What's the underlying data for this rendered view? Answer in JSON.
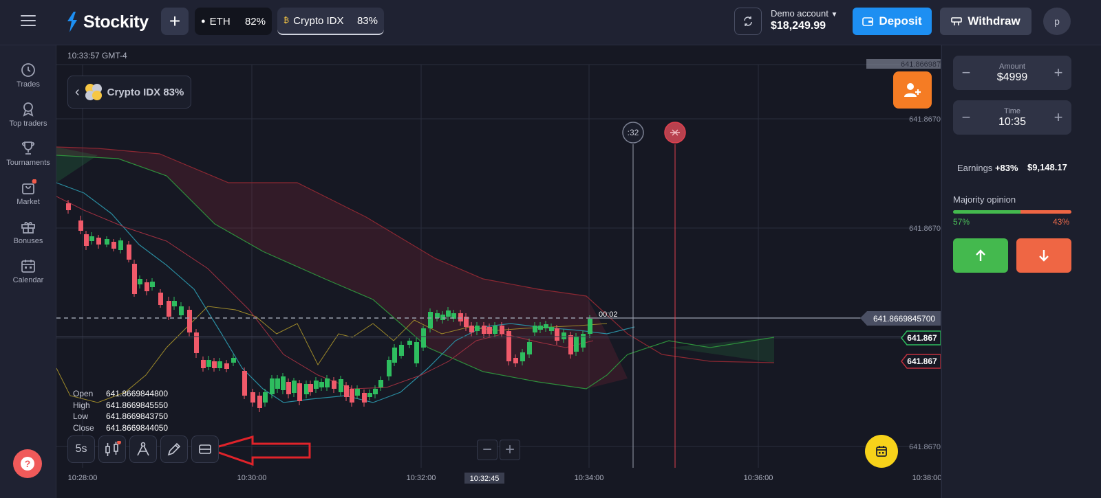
{
  "topbar": {
    "brand": "Stockity",
    "tabs": [
      {
        "name": "ETH",
        "payout": "82%"
      },
      {
        "name": "Crypto IDX",
        "payout": "83%"
      }
    ],
    "account_label": "Demo account",
    "balance": "$18,249.99",
    "deposit_label": "Deposit",
    "withdraw_label": "Withdraw",
    "avatar_initial": "p"
  },
  "sidebar": {
    "items": [
      {
        "label": "Trades",
        "icon": "clock-icon"
      },
      {
        "label": "Top traders",
        "icon": "medal-icon"
      },
      {
        "label": "Tournaments",
        "icon": "trophy-icon"
      },
      {
        "label": "Market",
        "icon": "bag-icon"
      },
      {
        "label": "Bonuses",
        "icon": "gift-icon"
      },
      {
        "label": "Calendar",
        "icon": "calendar-icon"
      }
    ]
  },
  "chart": {
    "header_time": "10:33:57 GMT-4",
    "asset_chip": "Crypto IDX 83%",
    "price_labels": [
      "641.8669873452",
      "641.8670",
      "641.8670",
      "641.8670"
    ],
    "current_price": "641.8669845700",
    "countdown": "00:02",
    "green_marker": "641.867",
    "red_marker": "641.867",
    "timer_circle": ":32",
    "time_labels": [
      "10:28:00",
      "10:30:00",
      "10:32:00",
      "10:34:00",
      "10:36:00",
      "10:38:00"
    ],
    "cursor_time": "10:32:45",
    "ohlc": {
      "open_label": "Open",
      "open": "641.8669844800",
      "high_label": "High",
      "high": "641.8669845550",
      "low_label": "Low",
      "low": "641.8669843750",
      "close_label": "Close",
      "close": "641.8669844050"
    },
    "tools": {
      "timeframe": "5s"
    }
  },
  "panel": {
    "amount_label": "Amount",
    "amount": "$4999",
    "time_label": "Time",
    "time": "10:35",
    "earnings_label": "Earnings",
    "earnings_pct": "+83%",
    "earnings_value": "$9,148.17",
    "majority_label": "Majority opinion",
    "majority_up": "57%",
    "majority_down": "43%",
    "majority_up_value": 57,
    "colors": {
      "up": "#44b94e",
      "down": "#ef6644",
      "accent": "#1d8ff2"
    }
  }
}
